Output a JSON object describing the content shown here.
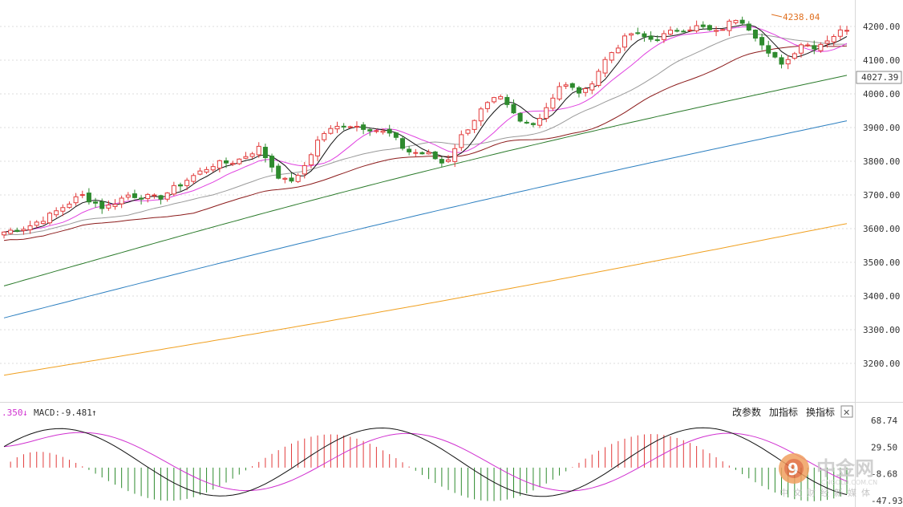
{
  "price_axis": {
    "ticks": [
      "4200.00",
      "4100.00",
      "4000.00",
      "3900.00",
      "3800.00",
      "3700.00",
      "3600.00",
      "3500.00",
      "3400.00",
      "3300.00",
      "3200.00"
    ],
    "current": "4027.39"
  },
  "max_label": "4238.04",
  "macd_header": {
    "prefix": ".350",
    "down_arrow": "↓",
    "macd_label": "MACD:-9.481",
    "up_arrow": "↑"
  },
  "macd_axis": {
    "ticks": [
      "68.74",
      "29.50",
      "-8.68",
      "-47.93"
    ]
  },
  "toolbar": {
    "change_params": "改参数",
    "add_indicator": "加指标",
    "switch_indicator": "换指标",
    "close": "✕"
  },
  "watermark": {
    "main": "中金网",
    "sub": "中文财经新媒体",
    "url": "CNGOLD.COM.CN"
  },
  "colors": {
    "up": "#e23b3b",
    "down": "#2e8b2e",
    "ma5": "#111111",
    "ma10": "#e040e0",
    "ma20": "#9a9a9a",
    "ma30": "#8b1a1a",
    "ma60": "#2a7a2a",
    "ma120": "#2c7fc0",
    "ma250": "#f0a020",
    "diff": "#111111",
    "dea": "#d030d0"
  },
  "chart_data": {
    "type": "candlestick",
    "price_range": [
      3150,
      4250
    ],
    "candles_count": 130,
    "max_marker": 4238.04,
    "last_price": 4027.39,
    "moving_averages": {
      "ma60_range": [
        3430,
        4055
      ],
      "ma120_range": [
        3335,
        3920
      ],
      "ma250_range": [
        3165,
        3615
      ]
    },
    "macd": {
      "range": [
        -47.93,
        68.74
      ],
      "value": -9.481
    }
  }
}
